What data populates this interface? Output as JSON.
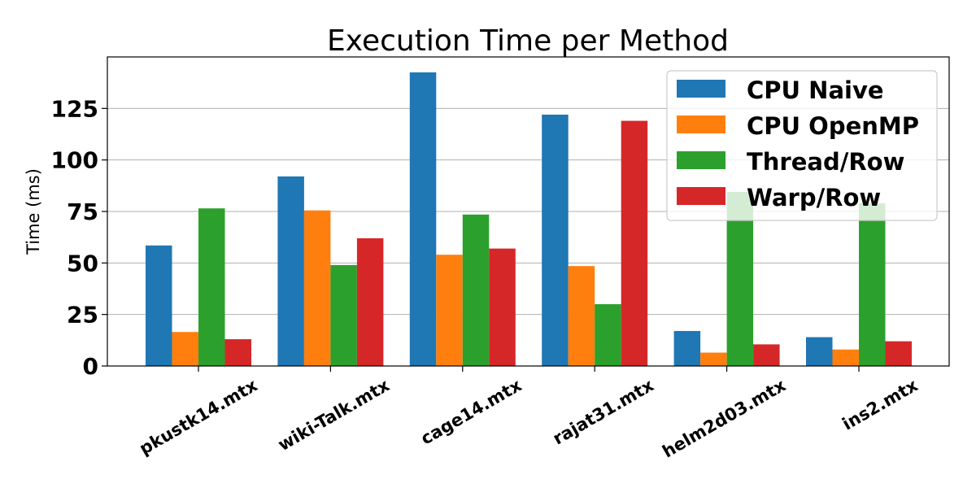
{
  "chart_data": {
    "type": "bar",
    "title": "Execution Time per Method",
    "xlabel": "",
    "ylabel": "Time (ms)",
    "ylim": [
      0,
      150
    ],
    "yticks": [
      0,
      25,
      50,
      75,
      100,
      125
    ],
    "grid": "horizontal",
    "legend_position": "top-right",
    "categories": [
      "pkustk14.mtx",
      "wiki-Talk.mtx",
      "cage14.mtx",
      "rajat31.mtx",
      "helm2d03.mtx",
      "ins2.mtx"
    ],
    "series": [
      {
        "name": "CPU Naive",
        "color": "#1f77b4",
        "values": [
          58.5,
          92,
          142.5,
          122,
          17,
          14
        ]
      },
      {
        "name": "CPU OpenMP",
        "color": "#ff7f0e",
        "values": [
          16.5,
          75.5,
          54,
          48.5,
          6.5,
          8
        ]
      },
      {
        "name": "Thread/Row",
        "color": "#2ca02c",
        "values": [
          76.5,
          49,
          73.5,
          30,
          84.5,
          79
        ]
      },
      {
        "name": "Warp/Row",
        "color": "#d62728",
        "values": [
          13,
          62,
          57,
          119,
          10.5,
          12
        ]
      }
    ]
  }
}
